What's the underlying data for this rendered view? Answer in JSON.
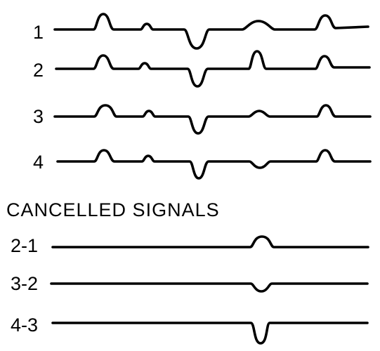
{
  "traces": [
    {
      "label": "1",
      "bumps": [
        {
          "shape": "peak",
          "direction": "up",
          "size": "large"
        },
        {
          "shape": "peak",
          "direction": "up",
          "size": "small"
        },
        {
          "shape": "trough",
          "direction": "down",
          "size": "large"
        },
        {
          "shape": "peak",
          "direction": "up",
          "size": "medium"
        },
        {
          "shape": "peak",
          "direction": "up",
          "size": "large"
        }
      ]
    },
    {
      "label": "2",
      "bumps": [
        {
          "shape": "peak",
          "direction": "up",
          "size": "large"
        },
        {
          "shape": "peak",
          "direction": "up",
          "size": "small"
        },
        {
          "shape": "trough",
          "direction": "down",
          "size": "large"
        },
        {
          "shape": "peak",
          "direction": "up",
          "size": "large"
        },
        {
          "shape": "peak",
          "direction": "up",
          "size": "large"
        }
      ]
    },
    {
      "label": "3",
      "bumps": [
        {
          "shape": "peak",
          "direction": "up",
          "size": "large"
        },
        {
          "shape": "peak",
          "direction": "up",
          "size": "small"
        },
        {
          "shape": "trough",
          "direction": "down",
          "size": "large"
        },
        {
          "shape": "peak",
          "direction": "up",
          "size": "small"
        },
        {
          "shape": "peak",
          "direction": "up",
          "size": "large"
        }
      ]
    },
    {
      "label": "4",
      "bumps": [
        {
          "shape": "peak",
          "direction": "up",
          "size": "large"
        },
        {
          "shape": "peak",
          "direction": "up",
          "size": "small"
        },
        {
          "shape": "trough",
          "direction": "down",
          "size": "large"
        },
        {
          "shape": "trough",
          "direction": "down",
          "size": "small"
        },
        {
          "shape": "peak",
          "direction": "up",
          "size": "large"
        }
      ]
    }
  ],
  "section_title": "CANCELLED SIGNALS",
  "cancelled": [
    {
      "label": "2-1",
      "bumps": [
        {
          "shape": "peak",
          "direction": "up",
          "size": "large"
        }
      ]
    },
    {
      "label": "3-2",
      "bumps": [
        {
          "shape": "trough",
          "direction": "down",
          "size": "medium"
        }
      ]
    },
    {
      "label": "4-3",
      "bumps": [
        {
          "shape": "trough",
          "direction": "down",
          "size": "large"
        }
      ]
    }
  ],
  "colors": {
    "line": "#000000",
    "background": "#ffffff"
  }
}
